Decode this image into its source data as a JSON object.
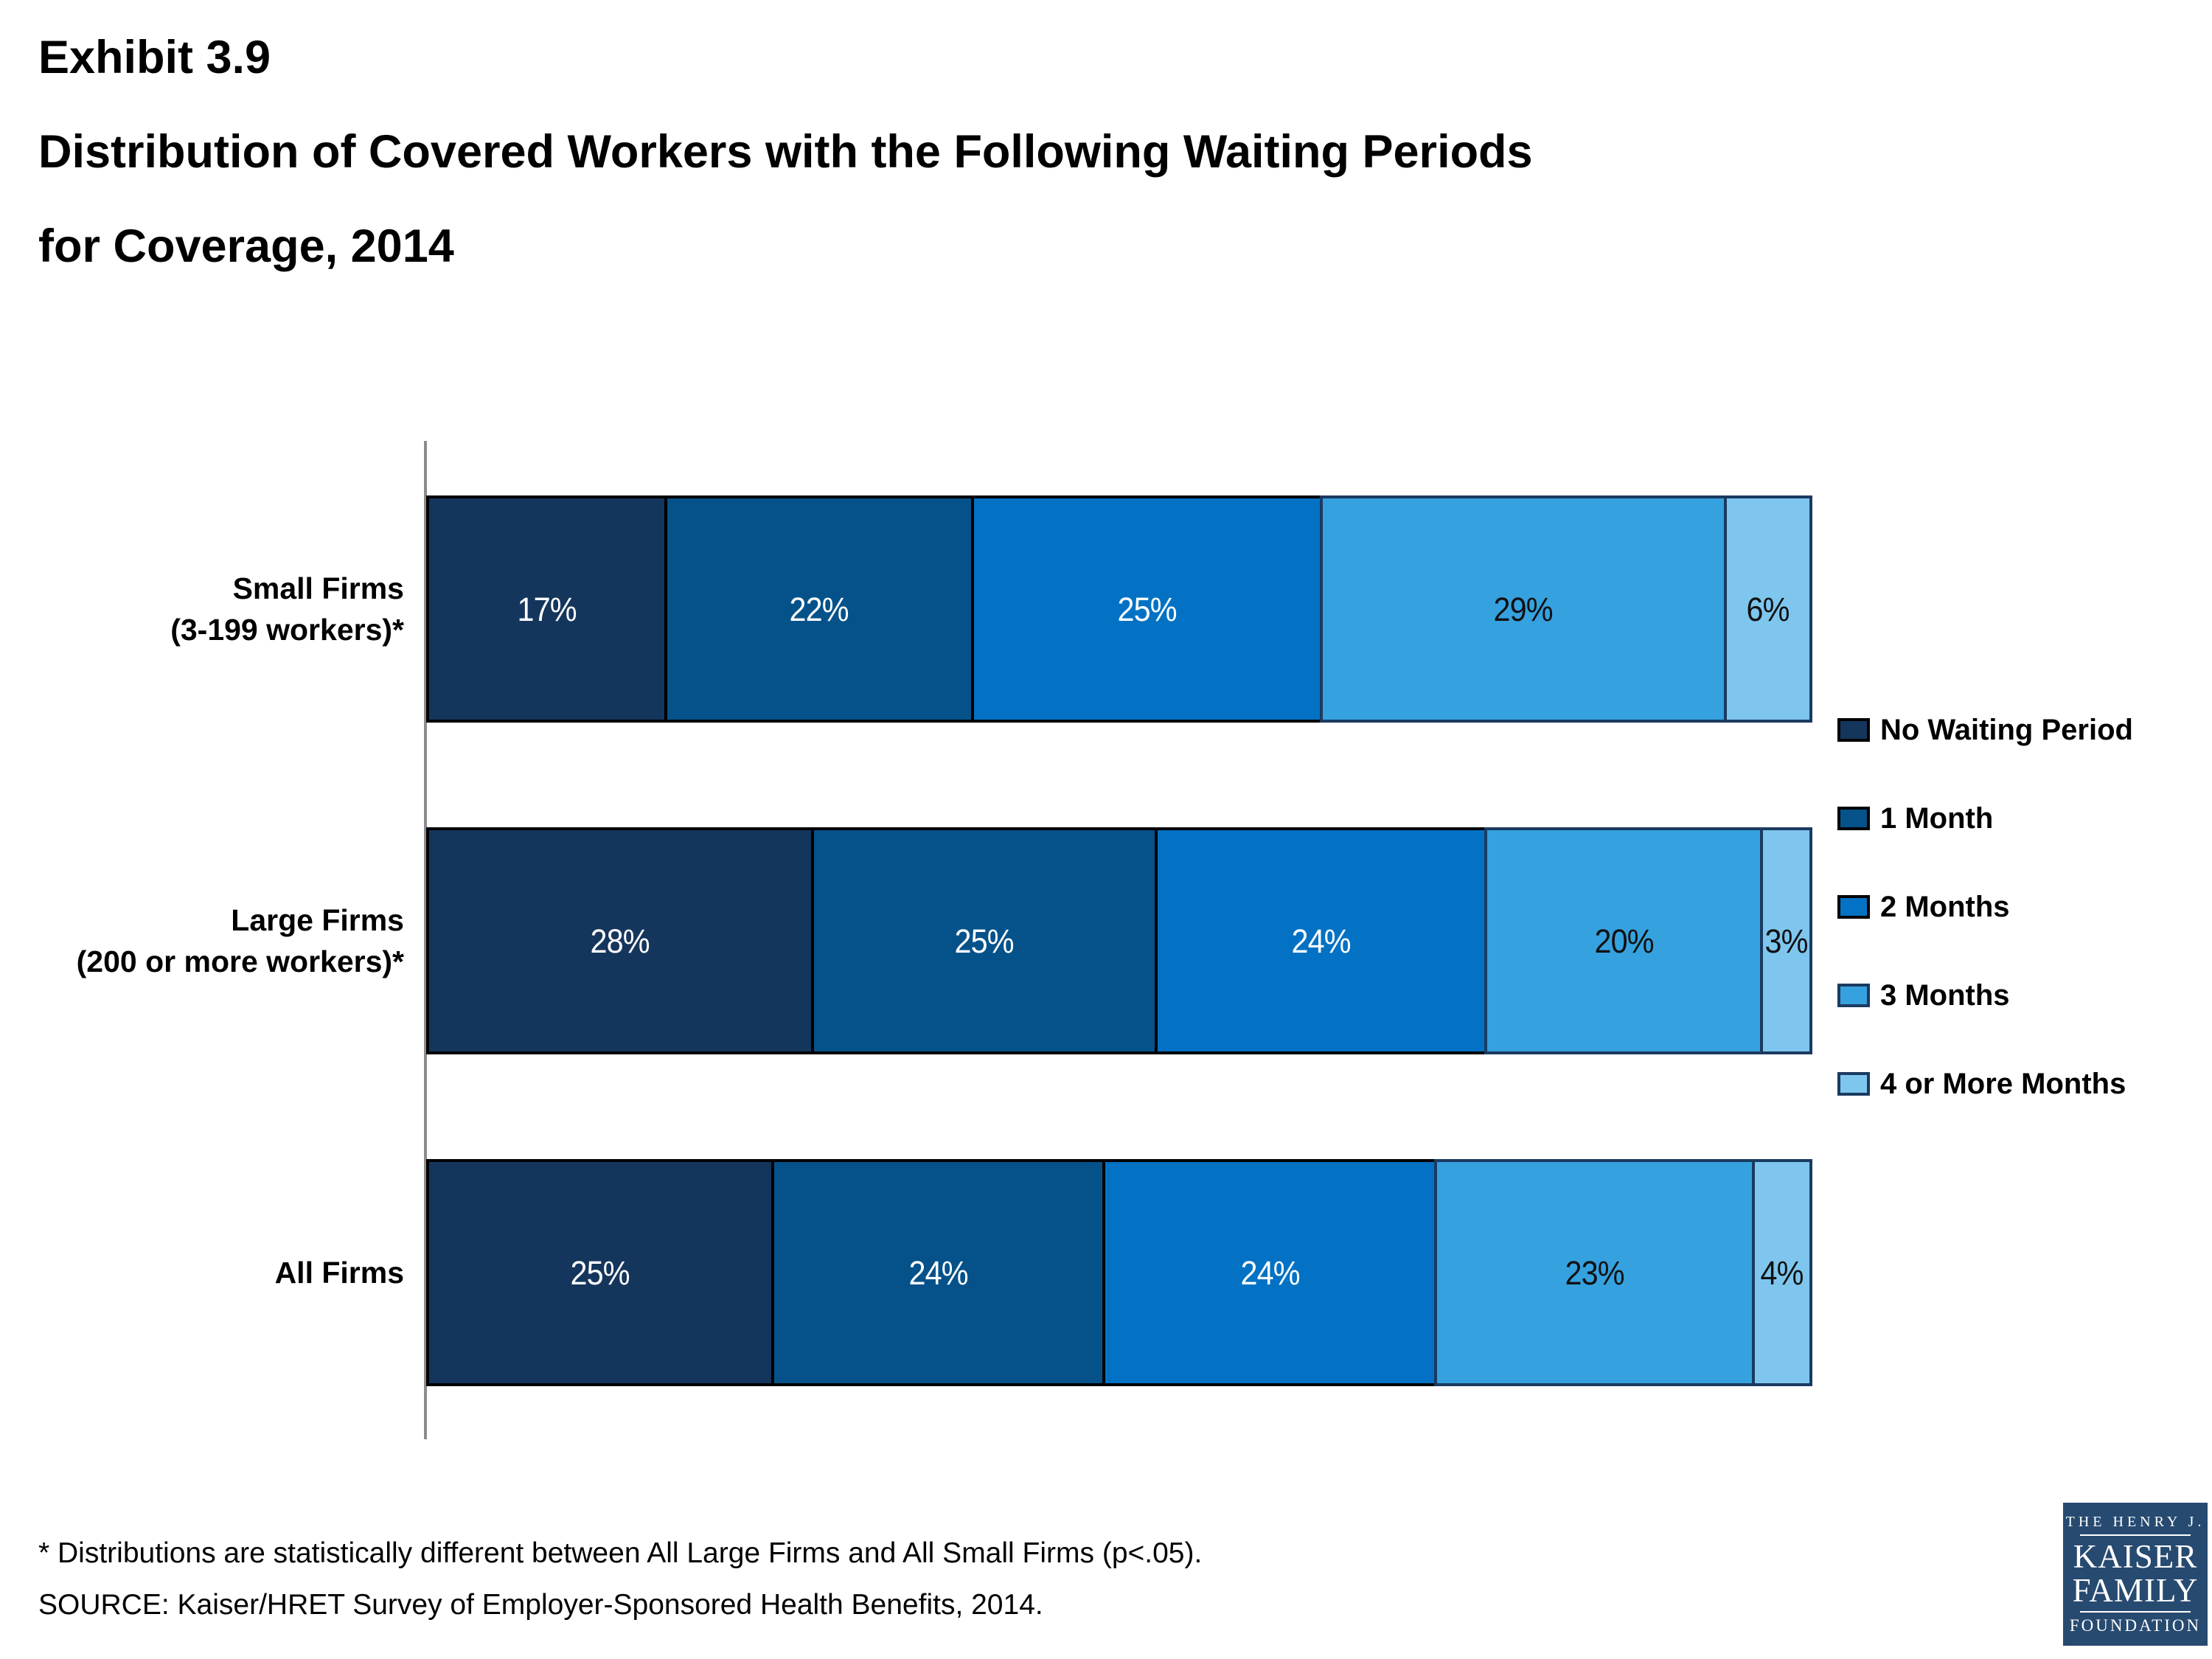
{
  "slide": {
    "exhibit": "Exhibit 3.9",
    "title_line1": "Distribution of Covered Workers with the Following Waiting Periods",
    "title_line2": "for Coverage, 2014"
  },
  "chart_data": {
    "type": "bar",
    "orientation": "horizontal",
    "stacked": "100%",
    "grid": false,
    "legend_position": "right",
    "value_suffix": "%",
    "axis_line_color": "#8c8c8c",
    "categories": [
      {
        "lines": [
          "Small Firms",
          "(3-199 workers)*"
        ]
      },
      {
        "lines": [
          "Large Firms",
          "(200 or more workers)*"
        ]
      },
      {
        "lines": [
          "All Firms"
        ]
      }
    ],
    "series": [
      {
        "name": "No Waiting Period",
        "color": "#15365c",
        "border": "#000000",
        "label_color": "#ffffff",
        "values": [
          17,
          28,
          25
        ]
      },
      {
        "name": "1 Month",
        "color": "#05528a",
        "border": "#000000",
        "label_color": "#ffffff",
        "values": [
          22,
          25,
          24
        ]
      },
      {
        "name": "2 Months",
        "color": "#0472c4",
        "border": "#000000",
        "label_color": "#ffffff",
        "values": [
          25,
          24,
          24
        ]
      },
      {
        "name": "3 Months",
        "color": "#36a1df",
        "border": "#1b3a60",
        "label_color": "#111111",
        "values": [
          29,
          20,
          23
        ]
      },
      {
        "name": "4 or More Months",
        "color": "#7ec6ee",
        "border": "#1b3a60",
        "label_color": "#111111",
        "values": [
          6,
          3,
          4
        ]
      }
    ]
  },
  "footnotes": [
    "* Distributions are statistically different between All Large Firms and All Small Firms (p<.05).",
    "SOURCE: Kaiser/HRET Survey of Employer-Sponsored Health Benefits, 2014."
  ],
  "logo": {
    "line1": "THE HENRY J.",
    "line2": "KAISER",
    "line3": "FAMILY",
    "line4": "FOUNDATION",
    "bg_color": "#274a71"
  }
}
